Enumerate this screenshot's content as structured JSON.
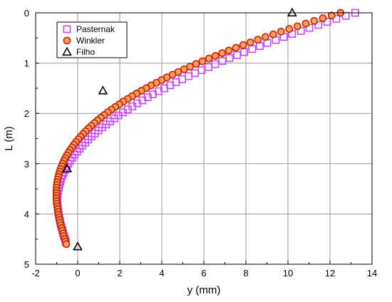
{
  "chart_data": {
    "type": "scatter",
    "xlabel": "y (mm)",
    "ylabel": "L (m)",
    "xlim": [
      -2,
      14
    ],
    "ylim": [
      0,
      5
    ],
    "y_axis_inverted": true,
    "grid": true,
    "legend_position": "top-left",
    "xticks": [
      "-2",
      "0",
      "2",
      "4",
      "6",
      "8",
      "10",
      "12",
      "14"
    ],
    "yticks": [
      "0",
      "1",
      "2",
      "3",
      "4",
      "5"
    ],
    "series": [
      {
        "name": "Pasternak",
        "marker": "square",
        "color": "#cc44ff",
        "fill": "none",
        "x": [
          13.2,
          12.75,
          12.3,
          11.87,
          11.45,
          11.02,
          10.62,
          10.2,
          9.8,
          9.42,
          9.02,
          8.66,
          8.3,
          7.92,
          7.58,
          7.22,
          6.88,
          6.54,
          6.22,
          5.9,
          5.58,
          5.28,
          4.97,
          4.68,
          4.4,
          4.12,
          3.85,
          3.58,
          3.33,
          3.08,
          2.84,
          2.6,
          2.38,
          2.15,
          1.94,
          1.74,
          1.54,
          1.35,
          1.16,
          0.99,
          0.82,
          0.66,
          0.5,
          0.36,
          0.22,
          0.09,
          -0.03,
          -0.14,
          -0.25,
          -0.35,
          -0.44,
          -0.52,
          -0.6,
          -0.67,
          -0.73,
          -0.79,
          -0.83,
          -0.87,
          -0.9,
          -0.93,
          -0.95,
          -0.96,
          -0.96,
          -0.96,
          -0.95,
          -0.94,
          -0.92,
          -0.9,
          -0.87,
          -0.84,
          -0.81,
          -0.77,
          -0.73,
          -0.69,
          -0.65,
          -0.6,
          -0.56
        ],
        "y": [
          0.0,
          0.06,
          0.12,
          0.18,
          0.24,
          0.3,
          0.36,
          0.42,
          0.48,
          0.54,
          0.6,
          0.66,
          0.72,
          0.78,
          0.84,
          0.9,
          0.96,
          1.02,
          1.08,
          1.14,
          1.2,
          1.26,
          1.32,
          1.38,
          1.44,
          1.5,
          1.56,
          1.62,
          1.68,
          1.74,
          1.8,
          1.86,
          1.92,
          1.98,
          2.04,
          2.1,
          2.16,
          2.22,
          2.28,
          2.34,
          2.4,
          2.46,
          2.52,
          2.58,
          2.64,
          2.7,
          2.76,
          2.82,
          2.88,
          2.94,
          3.0,
          3.06,
          3.12,
          3.18,
          3.24,
          3.3,
          3.36,
          3.42,
          3.48,
          3.54,
          3.6,
          3.66,
          3.72,
          3.78,
          3.84,
          3.9,
          3.96,
          4.02,
          4.08,
          4.14,
          4.2,
          4.26,
          4.32,
          4.38,
          4.44,
          4.5,
          4.56
        ]
      },
      {
        "name": "Winkler",
        "marker": "circle",
        "color": "#cc2200",
        "fill": "#f0a060",
        "x": [
          12.5,
          12.08,
          11.66,
          11.25,
          10.85,
          10.45,
          10.06,
          9.67,
          9.3,
          8.93,
          8.57,
          8.21,
          7.87,
          7.53,
          7.19,
          6.87,
          6.55,
          6.24,
          5.93,
          5.63,
          5.34,
          5.06,
          4.78,
          4.51,
          4.24,
          3.99,
          3.74,
          3.49,
          3.26,
          3.03,
          2.8,
          2.59,
          2.38,
          2.17,
          1.98,
          1.79,
          1.6,
          1.43,
          1.26,
          1.1,
          0.94,
          0.79,
          0.65,
          0.51,
          0.38,
          0.26,
          0.14,
          0.03,
          -0.08,
          -0.18,
          -0.27,
          -0.36,
          -0.44,
          -0.52,
          -0.59,
          -0.65,
          -0.71,
          -0.76,
          -0.81,
          -0.85,
          -0.89,
          -0.92,
          -0.95,
          -0.97,
          -0.99,
          -1.0,
          -1.01,
          -1.01,
          -1.01,
          -1.01,
          -1.0,
          -0.99,
          -0.97,
          -0.95,
          -0.93,
          -0.91,
          -0.88,
          -0.86,
          -0.83,
          -0.8,
          -0.76,
          -0.73,
          -0.69,
          -0.66,
          -0.62,
          -0.58,
          -0.54
        ],
        "y": [
          0.0,
          0.053,
          0.107,
          0.16,
          0.214,
          0.267,
          0.321,
          0.374,
          0.428,
          0.481,
          0.535,
          0.588,
          0.642,
          0.695,
          0.749,
          0.802,
          0.856,
          0.909,
          0.963,
          1.016,
          1.07,
          1.123,
          1.177,
          1.23,
          1.284,
          1.337,
          1.391,
          1.444,
          1.498,
          1.551,
          1.605,
          1.658,
          1.712,
          1.765,
          1.819,
          1.872,
          1.926,
          1.979,
          2.033,
          2.086,
          2.14,
          2.193,
          2.247,
          2.3,
          2.354,
          2.407,
          2.461,
          2.514,
          2.568,
          2.621,
          2.675,
          2.728,
          2.782,
          2.835,
          2.889,
          2.942,
          2.996,
          3.049,
          3.103,
          3.156,
          3.21,
          3.263,
          3.317,
          3.37,
          3.424,
          3.477,
          3.531,
          3.584,
          3.638,
          3.691,
          3.745,
          3.798,
          3.852,
          3.905,
          3.959,
          4.012,
          4.066,
          4.119,
          4.173,
          4.226,
          4.28,
          4.333,
          4.387,
          4.44,
          4.494,
          4.547,
          4.6
        ]
      },
      {
        "name": "Filho",
        "marker": "triangle",
        "color": "#000000",
        "fill": "none",
        "x": [
          10.2,
          1.2,
          -0.5,
          0.0
        ],
        "y": [
          0.0,
          1.55,
          3.1,
          4.65
        ]
      }
    ]
  }
}
